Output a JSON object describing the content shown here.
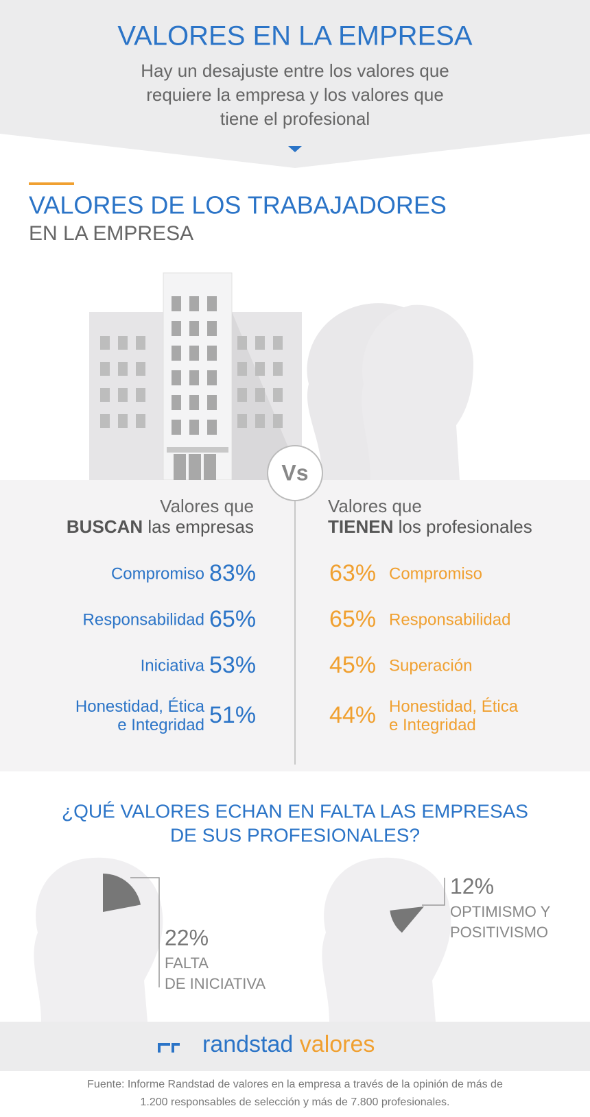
{
  "header": {
    "title": "VALORES EN LA EMPRESA",
    "subtitle": [
      "Hay un desajuste entre los valores que",
      "requiere la empresa y los valores que",
      "tiene el profesional"
    ]
  },
  "section": {
    "title": "VALORES DE LOS TRABAJADORES",
    "subtitle": "EN LA EMPRESA"
  },
  "vs": "Vs",
  "companies": {
    "heading": "Valores que",
    "heading_bold": "BUSCAN",
    "heading_rest": "las empresas",
    "rows": [
      {
        "label": [
          "Compromiso"
        ],
        "pct": "83%"
      },
      {
        "label": [
          "Responsabilidad"
        ],
        "pct": "65%"
      },
      {
        "label": [
          "Iniciativa"
        ],
        "pct": "53%"
      },
      {
        "label": [
          "Honestidad, Ética",
          "e Integridad"
        ],
        "pct": "51%"
      }
    ]
  },
  "professionals": {
    "heading": "Valores que",
    "heading_bold": "TIENEN",
    "heading_rest": "los profesionales",
    "rows": [
      {
        "label": [
          "Compromiso"
        ],
        "pct": "63%"
      },
      {
        "label": [
          "Responsabilidad"
        ],
        "pct": "65%"
      },
      {
        "label": [
          "Superación"
        ],
        "pct": "45%"
      },
      {
        "label": [
          "Honestidad, Ética",
          "e Integridad"
        ],
        "pct": "44%"
      }
    ]
  },
  "question": [
    "¿QUÉ VALORES ECHAN EN FALTA LAS EMPRESAS",
    "DE SUS PROFESIONALES?"
  ],
  "missing": [
    {
      "value": 22,
      "label": "22%",
      "text": [
        "FALTA",
        "DE INICIATIVA"
      ]
    },
    {
      "value": 12,
      "label": "12%",
      "text": [
        "OPTIMISMO Y",
        "POSITIVISMO"
      ]
    }
  ],
  "logo": {
    "brand": "randstad",
    "product": "valores"
  },
  "source": [
    "Fuente: Informe Randstad de valores en la empresa a través de la opinión de más de",
    "1.200 responsables de selección y más de 7.800 profesionales."
  ]
}
